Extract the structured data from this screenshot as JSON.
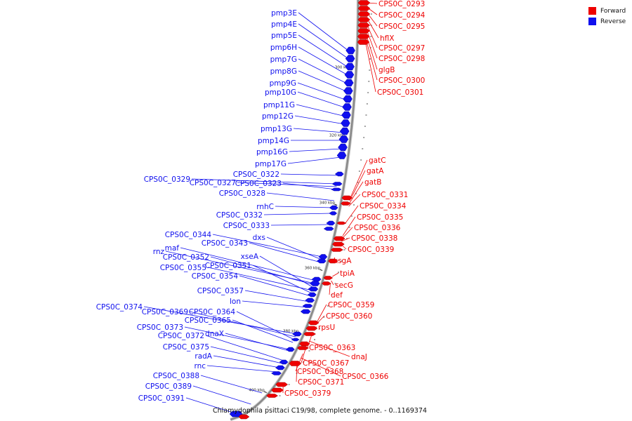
{
  "caption": "Chlamydophila psittaci C19/98, complete genome. - 0..1169374",
  "legend": [
    {
      "label": "Forward",
      "color": "#ee0000"
    },
    {
      "label": "Reverse",
      "color": "#1010ee"
    }
  ],
  "colors": {
    "forward": "#ee0000",
    "reverse": "#1010ee",
    "backbone": "#888888"
  },
  "ticks": [
    "300 kbp",
    "320 kbp",
    "340 kbp",
    "360 kbp",
    "380 kbp",
    "400 kbp"
  ],
  "forward_labels": [
    "CPS0C_0293",
    "CPS0C_0294",
    "CPS0C_0295",
    "hflX",
    "CPS0C_0297",
    "CPS0C_0298",
    "glgB",
    "CPS0C_0300",
    "CPS0C_0301",
    "gatC",
    "gatA",
    "gatB",
    "CPS0C_0331",
    "CPS0C_0334",
    "CPS0C_0335",
    "CPS0C_0336",
    "CPS0C_0338",
    "CPS0C_0339",
    "ksgA",
    "tpiA",
    "secG",
    "def",
    "CPS0C_0359",
    "CPS0C_0360",
    "rpsU",
    "CPS0C_0363",
    "dnaJ",
    "CPS0C_0367",
    "CPS0C_0368",
    "CPS0C_0366",
    "CPS0C_0371",
    "CPS0C_0379"
  ],
  "reverse_labels": [
    "pmp3E",
    "pmp4E",
    "pmp5E",
    "pmp6H",
    "pmp7G",
    "pmp8G",
    "pmp9G",
    "pmp10G",
    "pmp11G",
    "pmp12G",
    "pmp13G",
    "pmp14G",
    "pmp16G",
    "pmp17G",
    "CPS0C_0322",
    "CPS0C_0329",
    "CPS0C_0327",
    "CPS0C_0323",
    "CPS0C_0328",
    "rnhC",
    "CPS0C_0332",
    "CPS0C_0333",
    "CPS0C_0344",
    "dxs",
    "CPS0C_0343",
    "maf",
    "rnz",
    "CPS0C_0352",
    "xseA",
    "CPS0C_0355",
    "CPS0C_0351",
    "CPS0C_0354",
    "CPS0C_0357",
    "lon",
    "CPS0C_0374",
    "CPS0C_0369",
    "CPS0C_0364",
    "CPS0C_0365",
    "CPS0C_0373",
    "dnaX",
    "CPS0C_0372",
    "CPS0C_0375",
    "radA",
    "rnc",
    "CPS0C_0388",
    "CPS0C_0389",
    "CPS0C_0391"
  ]
}
